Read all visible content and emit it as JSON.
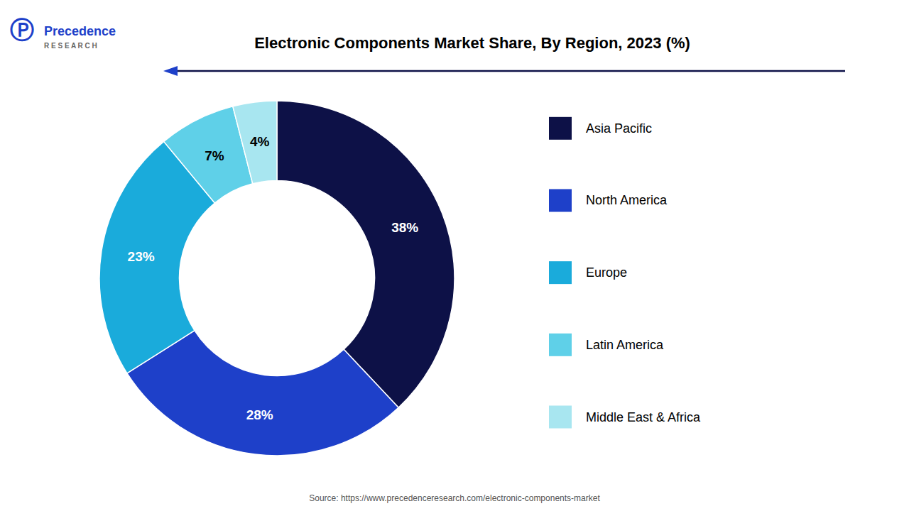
{
  "chart_data": {
    "type": "pie",
    "title": "Electronic Components Market Share, By Region, 2023 (%)",
    "categories": [
      "Asia Pacific",
      "North America",
      "Europe",
      "Latin America",
      "Middle East & Africa"
    ],
    "values": [
      38,
      28,
      23,
      7,
      4
    ],
    "value_labels": [
      "38%",
      "28%",
      "23%",
      "7%",
      "4%"
    ],
    "colors": [
      "#0d1147",
      "#1e40c9",
      "#1aabdb",
      "#5fd0e8",
      "#a8e6f0"
    ],
    "data_labels": true,
    "legend": "right",
    "annotations": [
      "Source: https://www.precedenceresearch.com/electronic-components-market",
      "Ⓟ",
      "Precedence",
      "R E S E A R C H"
    ]
  }
}
